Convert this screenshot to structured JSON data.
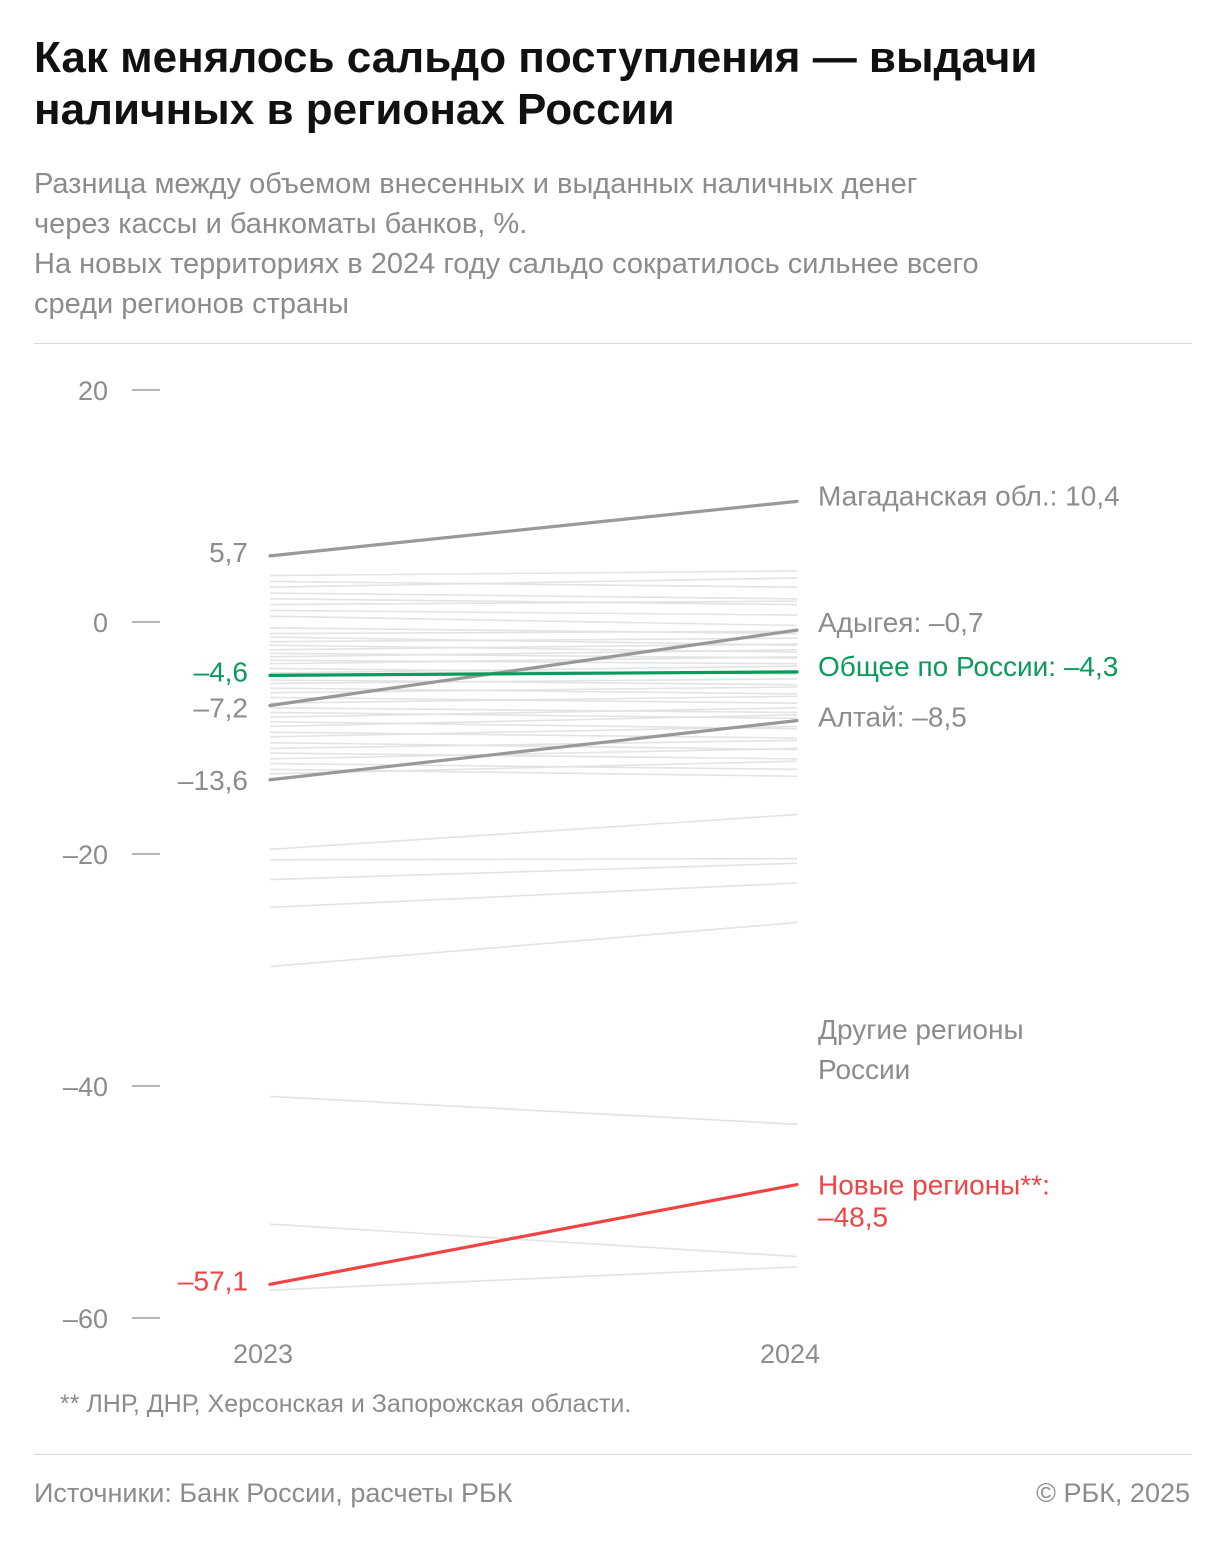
{
  "header": {
    "title": "Как менялось сальдо поступления — выдачи наличных в регионах России",
    "subtitle_lines": [
      "Разница между объемом внесенных и выданных наличных денег",
      "через кассы и банкоматы банков, %.",
      "На новых территориях в 2024 году сальдо сократилось сильнее всего",
      "среди регионов страны"
    ]
  },
  "chart_data": {
    "type": "line",
    "x": [
      "2023",
      "2024"
    ],
    "ylim": [
      -60,
      20
    ],
    "y_ticks": [
      20,
      0,
      -20,
      -40,
      -60
    ],
    "y_tick_labels": [
      "20",
      "0",
      "–20",
      "–40",
      "–60"
    ],
    "colors": {
      "background": "#e3e3e3",
      "highlight": "#999999",
      "russia": "#0a9b5c",
      "new_regions": "#f04444",
      "label": "#8c8c8c"
    },
    "highlighted_series": [
      {
        "name": "Магаданская обл.",
        "values": [
          5.7,
          10.4
        ],
        "start_label": "5,7",
        "end_label": "Магаданская обл.: 10,4",
        "color": "#999999"
      },
      {
        "name": "Адыгея",
        "values": [
          -7.2,
          -0.7
        ],
        "start_label": "–7,2",
        "end_label": "Адыгея: –0,7",
        "color": "#999999"
      },
      {
        "name": "Общее по России",
        "values": [
          -4.6,
          -4.3
        ],
        "start_label": "–4,6",
        "end_label": "Общее по России: –4,3",
        "color": "#0a9b5c"
      },
      {
        "name": "Алтай",
        "values": [
          -13.6,
          -8.5
        ],
        "start_label": "–13,6",
        "end_label": "Алтай: –8,5",
        "color": "#999999"
      },
      {
        "name": "Новые регионы**",
        "values": [
          -57.1,
          -48.5
        ],
        "start_label": "–57,1",
        "end_label_lines": [
          "Новые регионы**:",
          "–48,5"
        ],
        "color": "#f04444"
      }
    ],
    "background_group_label_lines": [
      "Другие регионы",
      "России"
    ],
    "background_series": [
      [
        4.0,
        4.4
      ],
      [
        3.5,
        3.0
      ],
      [
        3.0,
        3.8
      ],
      [
        2.5,
        2.0
      ],
      [
        2.0,
        1.5
      ],
      [
        1.5,
        1.8
      ],
      [
        1.0,
        0.6
      ],
      [
        0.5,
        -0.3
      ],
      [
        -0.5,
        -1.0
      ],
      [
        -1.0,
        -0.8
      ],
      [
        -1.3,
        -2.0
      ],
      [
        -1.7,
        -1.4
      ],
      [
        -2.0,
        -2.6
      ],
      [
        -2.4,
        -1.9
      ],
      [
        -2.7,
        -3.1
      ],
      [
        -3.0,
        -2.4
      ],
      [
        -3.3,
        -3.6
      ],
      [
        -3.6,
        -3.0
      ],
      [
        -4.0,
        -4.5
      ],
      [
        -4.4,
        -3.8
      ],
      [
        -5.0,
        -5.4
      ],
      [
        -5.3,
        -4.9
      ],
      [
        -5.7,
        -6.2
      ],
      [
        -6.1,
        -5.6
      ],
      [
        -6.5,
        -7.0
      ],
      [
        -7.0,
        -6.4
      ],
      [
        -7.4,
        -7.8
      ],
      [
        -7.8,
        -8.3
      ],
      [
        -8.2,
        -7.4
      ],
      [
        -8.6,
        -9.2
      ],
      [
        -9.0,
        -8.0
      ],
      [
        -9.5,
        -10.0
      ],
      [
        -9.9,
        -9.0
      ],
      [
        -10.4,
        -11.0
      ],
      [
        -10.9,
        -10.2
      ],
      [
        -11.3,
        -11.8
      ],
      [
        -11.8,
        -10.9
      ],
      [
        -12.2,
        -12.7
      ],
      [
        -12.7,
        -13.3
      ],
      [
        -13.1,
        -12.0
      ],
      [
        -19.6,
        -16.6
      ],
      [
        -20.5,
        -20.4
      ],
      [
        -22.2,
        -20.8
      ],
      [
        -24.6,
        -22.5
      ],
      [
        -29.7,
        -25.9
      ],
      [
        -40.9,
        -43.3
      ],
      [
        -51.9,
        -54.7
      ],
      [
        -57.6,
        -55.6
      ]
    ]
  },
  "footer": {
    "footnote": "** ЛНР, ДНР, Херсонская и Запорожская области.",
    "source": "Источники: Банк России, расчеты РБК",
    "copyright": "© РБК, 2025"
  }
}
